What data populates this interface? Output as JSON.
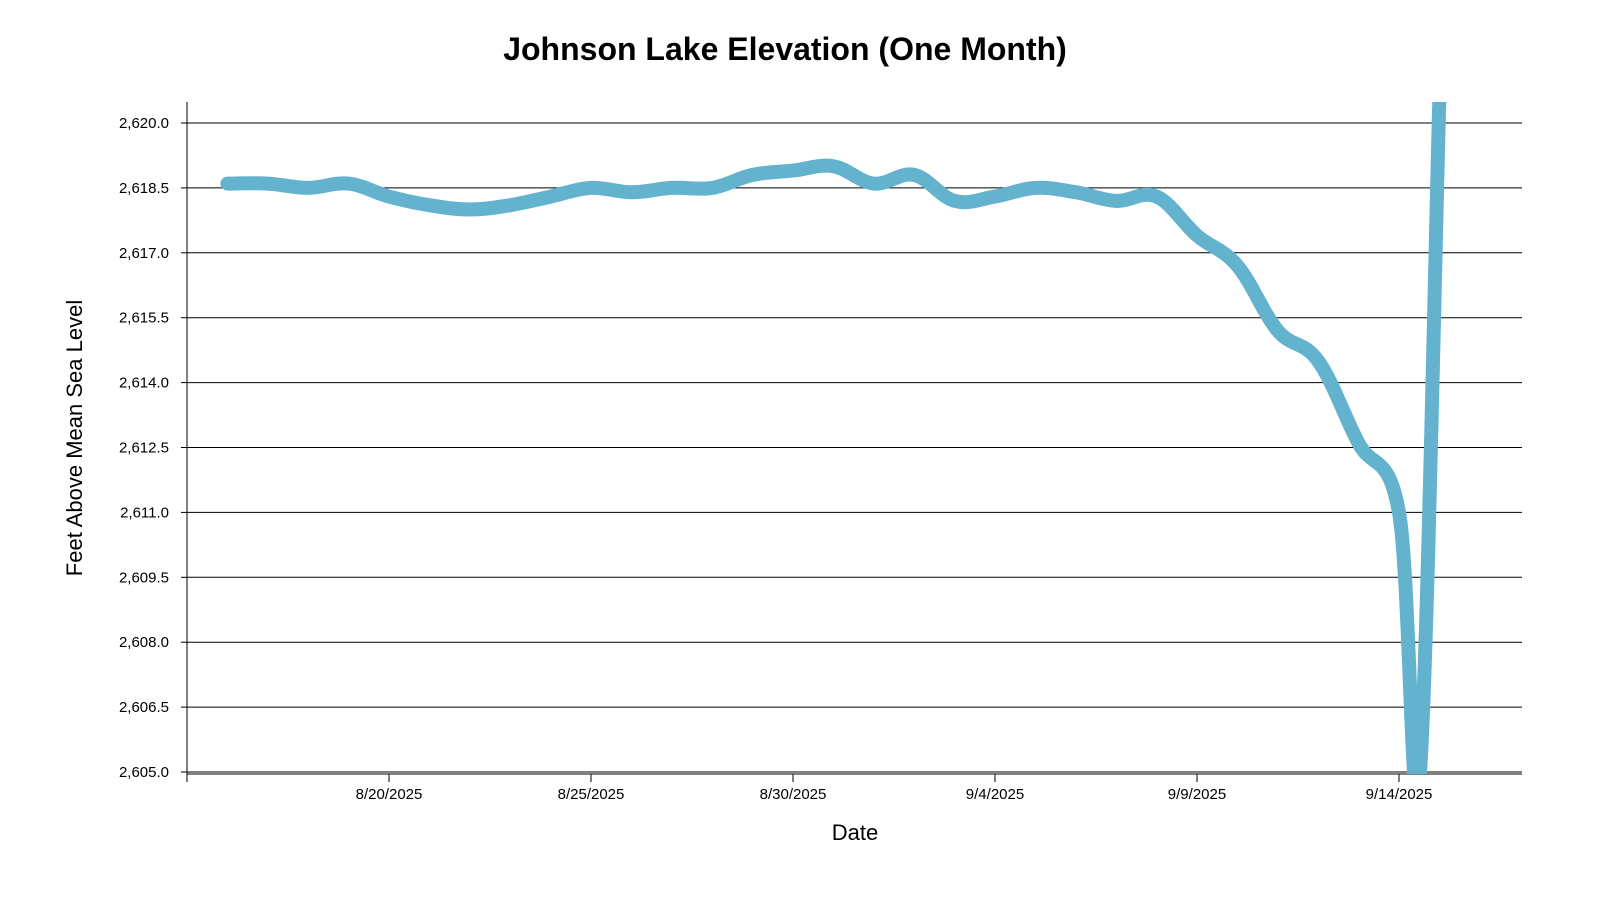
{
  "chart_data": {
    "type": "line",
    "title": "Johnson Lake Elevation (One Month)",
    "xlabel": "Date",
    "ylabel": "Feet Above Mean Sea Level",
    "line_color": "#63b3cf",
    "grid": true,
    "legend": "none",
    "xlim": [
      "2025-08-15",
      "2025-09-18"
    ],
    "ylim": [
      2605.0,
      2620.5
    ],
    "x_ticks": [
      {
        "date": "2025-08-20",
        "label": "8/20/2025"
      },
      {
        "date": "2025-08-25",
        "label": "8/25/2025"
      },
      {
        "date": "2025-08-30",
        "label": "8/30/2025"
      },
      {
        "date": "2025-09-04",
        "label": "9/4/2025"
      },
      {
        "date": "2025-09-09",
        "label": "9/9/2025"
      },
      {
        "date": "2025-09-14",
        "label": "9/14/2025"
      }
    ],
    "y_ticks": [
      {
        "value": 2605.0,
        "label": "2,605.0"
      },
      {
        "value": 2606.5,
        "label": "2,606.5"
      },
      {
        "value": 2608.0,
        "label": "2,608.0"
      },
      {
        "value": 2609.5,
        "label": "2,609.5"
      },
      {
        "value": 2611.0,
        "label": "2,611.0"
      },
      {
        "value": 2612.5,
        "label": "2,612.5"
      },
      {
        "value": 2614.0,
        "label": "2,614.0"
      },
      {
        "value": 2615.5,
        "label": "2,615.5"
      },
      {
        "value": 2617.0,
        "label": "2,617.0"
      },
      {
        "value": 2618.5,
        "label": "2,618.5"
      },
      {
        "value": 2620.0,
        "label": "2,620.0"
      }
    ],
    "series": [
      {
        "points": [
          {
            "x": "2025-08-16",
            "y": 2618.6
          },
          {
            "x": "2025-08-17",
            "y": 2618.6
          },
          {
            "x": "2025-08-18",
            "y": 2618.5
          },
          {
            "x": "2025-08-19",
            "y": 2618.6
          },
          {
            "x": "2025-08-20",
            "y": 2618.3
          },
          {
            "x": "2025-08-21",
            "y": 2618.1
          },
          {
            "x": "2025-08-22",
            "y": 2618.0
          },
          {
            "x": "2025-08-23",
            "y": 2618.1
          },
          {
            "x": "2025-08-24",
            "y": 2618.3
          },
          {
            "x": "2025-08-25",
            "y": 2618.5
          },
          {
            "x": "2025-08-26",
            "y": 2618.4
          },
          {
            "x": "2025-08-27",
            "y": 2618.5
          },
          {
            "x": "2025-08-28",
            "y": 2618.5
          },
          {
            "x": "2025-08-29",
            "y": 2618.8
          },
          {
            "x": "2025-08-30",
            "y": 2618.9
          },
          {
            "x": "2025-08-31",
            "y": 2619.0
          },
          {
            "x": "2025-09-01",
            "y": 2618.6
          },
          {
            "x": "2025-09-02",
            "y": 2618.8
          },
          {
            "x": "2025-09-03",
            "y": 2618.2
          },
          {
            "x": "2025-09-04",
            "y": 2618.3
          },
          {
            "x": "2025-09-05",
            "y": 2618.5
          },
          {
            "x": "2025-09-06",
            "y": 2618.4
          },
          {
            "x": "2025-09-07",
            "y": 2618.2
          },
          {
            "x": "2025-09-08",
            "y": 2618.3
          },
          {
            "x": "2025-09-09",
            "y": 2617.4
          },
          {
            "x": "2025-09-10",
            "y": 2616.7
          },
          {
            "x": "2025-09-11",
            "y": 2615.2
          },
          {
            "x": "2025-09-12",
            "y": 2614.5
          },
          {
            "x": "2025-09-13",
            "y": 2612.6
          },
          {
            "x": "2025-09-14",
            "y": 2611.0
          },
          {
            "x": "2025-09-14T12:00",
            "y": 2604.8
          },
          {
            "x": "2025-09-15",
            "y": 2620.6
          }
        ]
      }
    ]
  }
}
